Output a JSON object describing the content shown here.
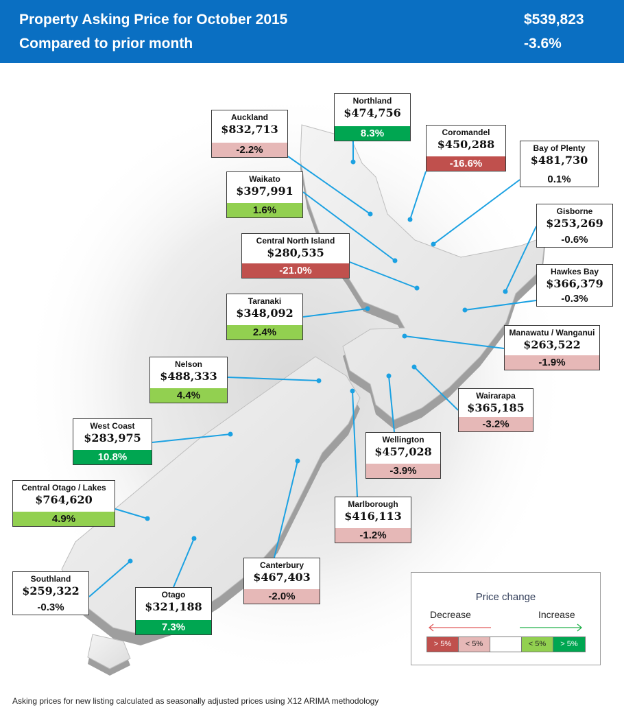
{
  "header": {
    "title_line1": "Property Asking Price for  October 2015",
    "title_line2": "Compared to prior month",
    "price": "$539,823",
    "change": "-3.6%"
  },
  "colors": {
    "strong_decrease": "#c0504d",
    "decrease": "#e6b8b7",
    "neutral": "#ffffff",
    "increase": "#92d050",
    "strong_increase": "#00a651",
    "leader": "#1ba1e2"
  },
  "regions": [
    {
      "name": "Auckland",
      "price": "$832,713",
      "change": "-2.2%",
      "category": "decrease"
    },
    {
      "name": "Northland",
      "price": "$474,756",
      "change": "8.3%",
      "category": "strong_increase"
    },
    {
      "name": "Coromandel",
      "price": "$450,288",
      "change": "-16.6%",
      "category": "strong_decrease"
    },
    {
      "name": "Bay of Plenty",
      "price": "$481,730",
      "change": "0.1%",
      "category": "neutral"
    },
    {
      "name": "Waikato",
      "price": "$397,991",
      "change": "1.6%",
      "category": "increase"
    },
    {
      "name": "Gisborne",
      "price": "$253,269",
      "change": "-0.6%",
      "category": "neutral"
    },
    {
      "name": "Central North Island",
      "price": "$280,535",
      "change": "-21.0%",
      "category": "strong_decrease"
    },
    {
      "name": "Hawkes Bay",
      "price": "$366,379",
      "change": "-0.3%",
      "category": "neutral"
    },
    {
      "name": "Taranaki",
      "price": "$348,092",
      "change": "2.4%",
      "category": "increase"
    },
    {
      "name": "Manawatu / Wanganui",
      "price": "$263,522",
      "change": "-1.9%",
      "category": "decrease"
    },
    {
      "name": "Nelson",
      "price": "$488,333",
      "change": "4.4%",
      "category": "increase"
    },
    {
      "name": "Wairarapa",
      "price": "$365,185",
      "change": "-3.2%",
      "category": "decrease"
    },
    {
      "name": "West Coast",
      "price": "$283,975",
      "change": "10.8%",
      "category": "strong_increase"
    },
    {
      "name": "Wellington",
      "price": "$457,028",
      "change": "-3.9%",
      "category": "decrease"
    },
    {
      "name": "Central Otago / Lakes",
      "price": "$764,620",
      "change": "4.9%",
      "category": "increase"
    },
    {
      "name": "Marlborough",
      "price": "$416,113",
      "change": "-1.2%",
      "category": "decrease"
    },
    {
      "name": "Canterbury",
      "price": "$467,403",
      "change": "-2.0%",
      "category": "decrease"
    },
    {
      "name": "Southland",
      "price": "$259,322",
      "change": "-0.3%",
      "category": "neutral"
    },
    {
      "name": "Otago",
      "price": "$321,188",
      "change": "7.3%",
      "category": "strong_increase"
    }
  ],
  "legend": {
    "title": "Price change",
    "decrease_label": "Decrease",
    "increase_label": "Increase",
    "swatches": [
      {
        "label": "> 5%",
        "category": "strong_decrease"
      },
      {
        "label": "< 5%",
        "category": "decrease"
      },
      {
        "label": "",
        "category": "neutral"
      },
      {
        "label": "< 5%",
        "category": "increase"
      },
      {
        "label": "> 5%",
        "category": "strong_increase"
      }
    ]
  },
  "footnote": "Asking prices for new listing calculated as seasonally adjusted prices using X12 ARIMA methodology"
}
